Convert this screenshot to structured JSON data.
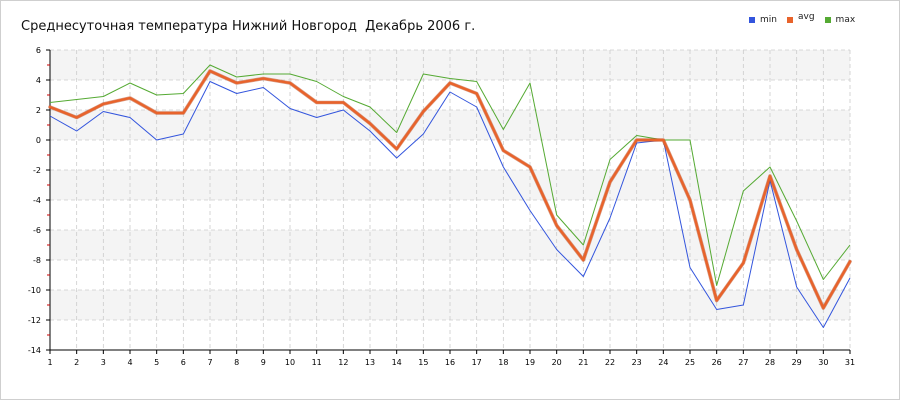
{
  "chart_data": {
    "type": "line",
    "title": "Среднесуточная температура Нижний Новгород  Декабрь 2006 г.",
    "xlabel": "",
    "ylabel": "",
    "x": [
      1,
      2,
      3,
      4,
      5,
      6,
      7,
      8,
      9,
      10,
      11,
      12,
      13,
      14,
      15,
      16,
      17,
      18,
      19,
      20,
      21,
      22,
      23,
      24,
      25,
      26,
      27,
      28,
      29,
      30,
      31
    ],
    "x_tick_labels": [
      "1",
      "2",
      "3",
      "4",
      "5",
      "6",
      "7",
      "8",
      "9",
      "10",
      "11",
      "12",
      "13",
      "14",
      "15",
      "16",
      "17",
      "18",
      "19",
      "20",
      "21",
      "22",
      "23",
      "24",
      "25",
      "26",
      "27",
      "28",
      "29",
      "30",
      "31"
    ],
    "xlim": [
      1,
      31
    ],
    "ylim": [
      -14,
      6
    ],
    "y_ticks": [
      6,
      4,
      2,
      0,
      -2,
      -4,
      -6,
      -8,
      -10,
      -12,
      -14
    ],
    "y_tick_labels": [
      "6",
      "4",
      "2",
      "0",
      "-2",
      "-4",
      "-6",
      "-8",
      "-10",
      "-12",
      "-14"
    ],
    "grid": true,
    "legend_position": "top-right",
    "series": [
      {
        "name": "min",
        "color": "#3355dd",
        "values": [
          1.6,
          0.6,
          1.9,
          1.5,
          0.0,
          0.4,
          3.9,
          3.1,
          3.5,
          2.1,
          1.5,
          2.0,
          0.6,
          -1.2,
          0.4,
          3.2,
          2.2,
          -1.8,
          -4.7,
          -7.3,
          -9.1,
          -5.2,
          -0.2,
          0.0,
          -8.5,
          -11.3,
          -11.0,
          -2.7,
          -9.8,
          -12.5,
          -9.2
        ]
      },
      {
        "name": "avg",
        "color": "#e8632b",
        "values": [
          2.2,
          1.5,
          2.4,
          2.8,
          1.8,
          1.8,
          4.6,
          3.8,
          4.1,
          3.8,
          2.5,
          2.5,
          1.1,
          -0.6,
          1.9,
          3.8,
          3.1,
          -0.7,
          -1.8,
          -5.7,
          -8.0,
          -2.8,
          0.0,
          0.0,
          -4.0,
          -10.7,
          -8.2,
          -2.4,
          -7.3,
          -11.2,
          -8.1
        ]
      },
      {
        "name": "max",
        "color": "#55aa33",
        "values": [
          2.5,
          2.7,
          2.9,
          3.8,
          3.0,
          3.1,
          5.0,
          4.2,
          4.4,
          4.4,
          3.9,
          2.9,
          2.2,
          0.5,
          4.4,
          4.1,
          3.9,
          0.7,
          3.8,
          -5.0,
          -7.0,
          -1.3,
          0.3,
          0.0,
          0.0,
          -9.7,
          -3.4,
          -1.8,
          -5.4,
          -9.3,
          -7.0
        ]
      }
    ]
  }
}
